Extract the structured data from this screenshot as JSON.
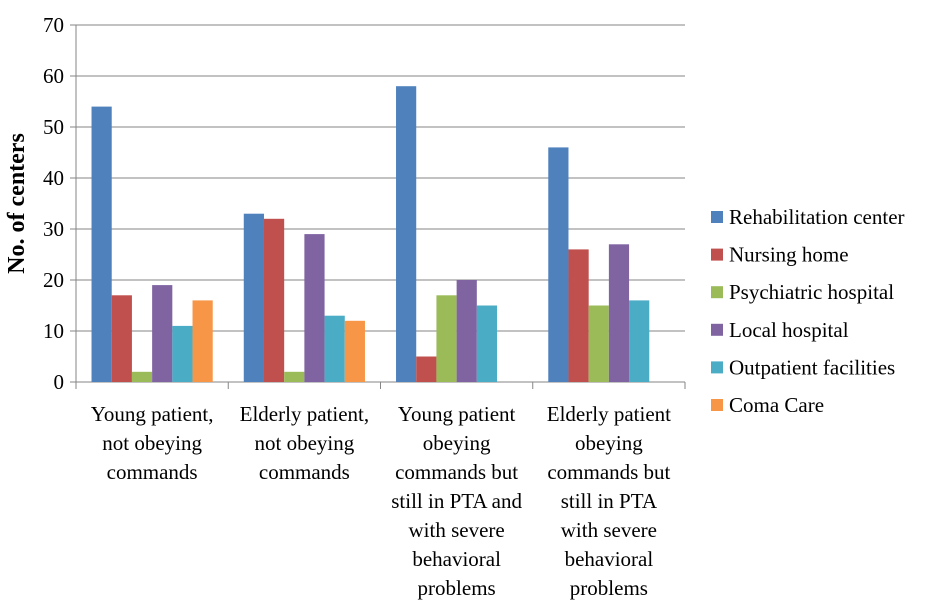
{
  "chart_data": {
    "type": "bar",
    "title": "",
    "xlabel": "",
    "ylabel": "No. of centers",
    "ylim": [
      0,
      70
    ],
    "yticks": [
      0,
      10,
      20,
      30,
      40,
      50,
      60,
      70
    ],
    "grid": true,
    "legend_position": "right",
    "categories": [
      [
        "Young patient,",
        "not obeying",
        "commands"
      ],
      [
        "Elderly patient,",
        "not obeying",
        "commands"
      ],
      [
        "Young patient",
        "obeying",
        "commands but",
        "still in PTA and",
        "with severe",
        "behavioral",
        "problems"
      ],
      [
        "Elderly patient",
        "obeying",
        "commands but",
        "still in PTA",
        "with severe",
        "behavioral",
        "problems"
      ]
    ],
    "series": [
      {
        "name": "Rehabilitation center",
        "color": "#4F81BD",
        "values": [
          54,
          33,
          58,
          46
        ]
      },
      {
        "name": "Nursing home",
        "color": "#C0504D",
        "values": [
          17,
          32,
          5,
          26
        ]
      },
      {
        "name": "Psychiatric hospital",
        "color": "#9BBB59",
        "values": [
          2,
          2,
          17,
          15
        ]
      },
      {
        "name": "Local hospital",
        "color": "#8064A2",
        "values": [
          19,
          29,
          20,
          27
        ]
      },
      {
        "name": "Outpatient facilities",
        "color": "#4BACC6",
        "values": [
          11,
          13,
          15,
          16
        ]
      },
      {
        "name": "Coma Care",
        "color": "#F79646",
        "values": [
          16,
          12,
          0,
          0
        ]
      }
    ]
  }
}
